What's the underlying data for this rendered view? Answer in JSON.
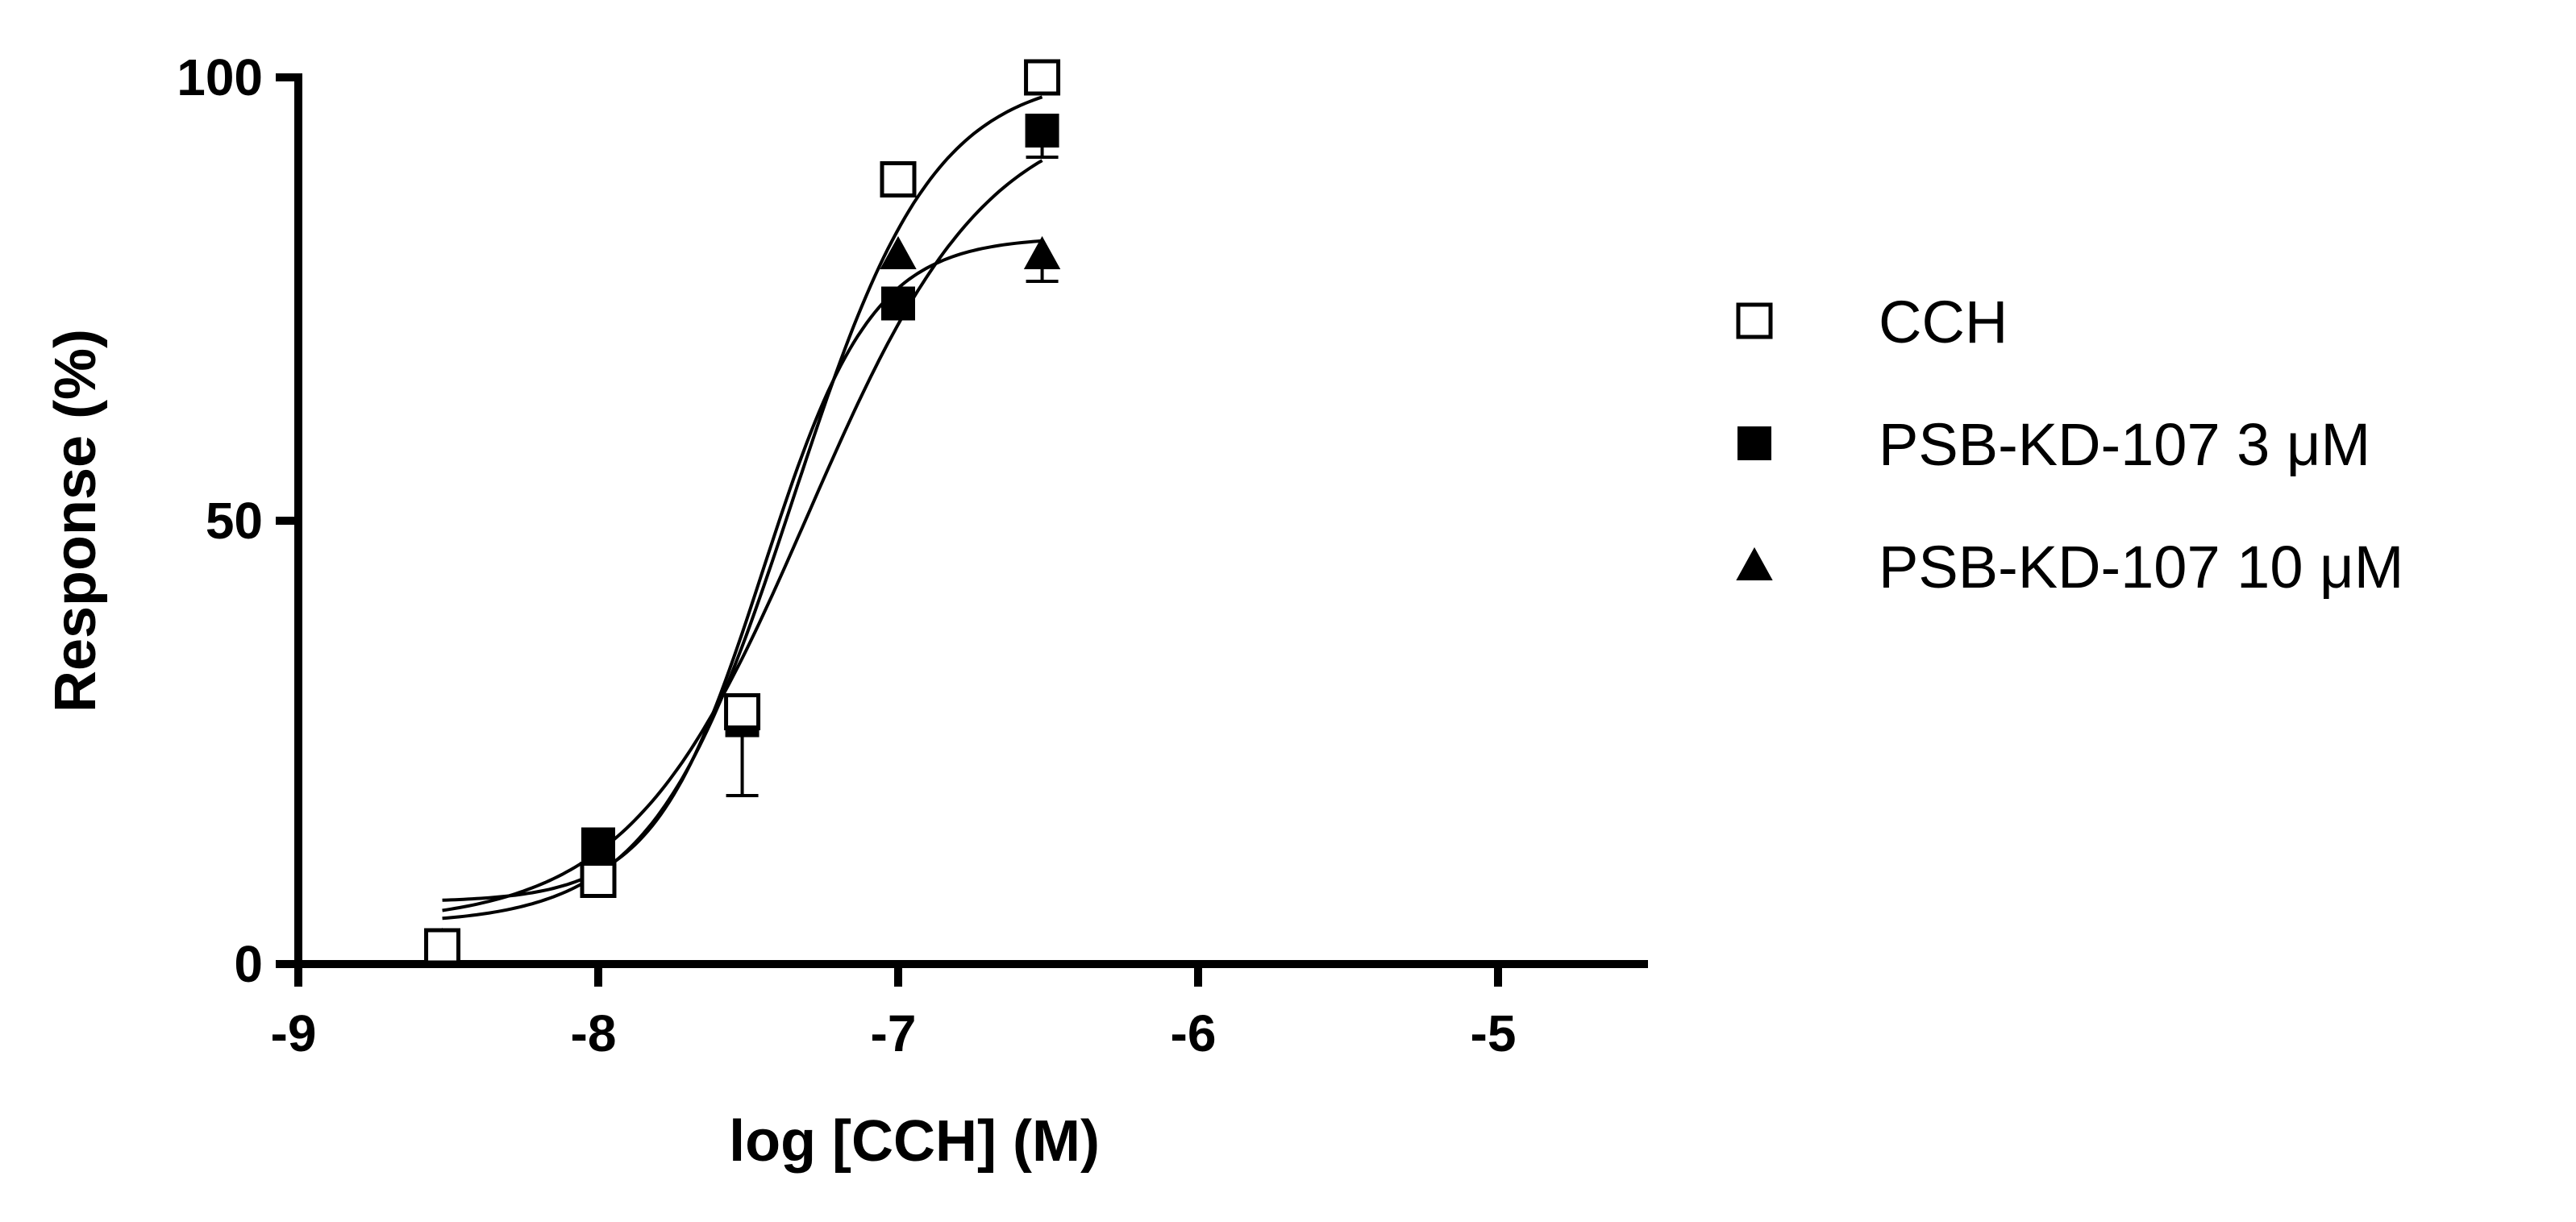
{
  "chart_data": {
    "type": "scatter",
    "xlabel": "log [CCH] (M)",
    "ylabel": "Response (%)",
    "xlim": [
      -9,
      -4.5
    ],
    "ylim": [
      0,
      100
    ],
    "x_ticks": [
      -9,
      -8,
      -7,
      -6,
      -5
    ],
    "y_ticks": [
      0,
      50,
      100
    ],
    "x_tick_labels": [
      "-9",
      "-8",
      "-7",
      "-6",
      "-5"
    ],
    "y_tick_labels": [
      "0",
      "50",
      "100"
    ],
    "legend_position": "right",
    "grid": false,
    "series": [
      {
        "name": "CCH",
        "marker": "square-open",
        "x": [
          -8.52,
          -8.0,
          -7.52,
          -7.0,
          -6.52
        ],
        "y": [
          2,
          9.5,
          28.5,
          88.5,
          100
        ],
        "error": [
          0,
          0,
          0,
          0,
          0
        ],
        "fit": {
          "bottom": 4.5,
          "top": 100.5,
          "logEC50": -7.35,
          "hill": 1.85
        }
      },
      {
        "name": "PSB-KD-107 3 μM",
        "marker": "square-filled",
        "x": [
          -8.52,
          -8.0,
          -7.52,
          -7.0,
          -6.52
        ],
        "y": [
          2,
          13.5,
          27.5,
          74.5,
          94
        ],
        "error": [
          0,
          0,
          8.5,
          0,
          3
        ],
        "fit": {
          "bottom": 4.5,
          "top": 97,
          "logEC50": -7.3,
          "hill": 1.45
        }
      },
      {
        "name": "PSB-KD-107  10 μM",
        "marker": "triangle-filled",
        "x": [
          -8.52,
          -8.0,
          -7.52,
          -7.0,
          -6.52
        ],
        "y": [
          2,
          12.5,
          28,
          80,
          80
        ],
        "error": [
          0,
          0,
          0,
          0,
          3
        ],
        "fit": {
          "bottom": 7,
          "top": 82,
          "logEC50": -7.45,
          "hill": 2.4
        }
      }
    ]
  }
}
